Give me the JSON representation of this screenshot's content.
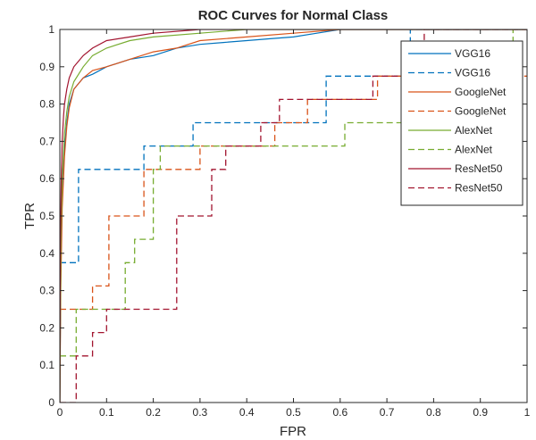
{
  "chart_data": {
    "type": "line",
    "title": "ROC Curves for Normal Class",
    "xlabel": "FPR",
    "ylabel": "TPR",
    "xlim": [
      0,
      1
    ],
    "ylim": [
      0,
      1
    ],
    "xticks": [
      "0",
      "0.1",
      "0.2",
      "0.3",
      "0.4",
      "0.5",
      "0.6",
      "0.7",
      "0.8",
      "0.9",
      "1"
    ],
    "yticks": [
      "0",
      "0.1",
      "0.2",
      "0.3",
      "0.4",
      "0.5",
      "0.6",
      "0.7",
      "0.8",
      "0.9",
      "1"
    ],
    "grid": false,
    "legend_position": "top-right",
    "series": [
      {
        "name": "VGG16",
        "style": "solid",
        "color": "#0072BD",
        "x": [
          0,
          0.002,
          0.005,
          0.01,
          0.015,
          0.02,
          0.03,
          0.05,
          0.07,
          0.1,
          0.15,
          0.2,
          0.25,
          0.3,
          0.35,
          0.4,
          0.45,
          0.5,
          0.55,
          0.6,
          0.7,
          0.8,
          0.9,
          1
        ],
        "y": [
          0,
          0.35,
          0.55,
          0.68,
          0.75,
          0.8,
          0.84,
          0.87,
          0.88,
          0.9,
          0.92,
          0.93,
          0.95,
          0.96,
          0.965,
          0.97,
          0.975,
          0.98,
          0.99,
          1,
          1,
          1,
          1,
          1
        ]
      },
      {
        "name": "VGG16",
        "style": "dashed",
        "color": "#0072BD",
        "x": [
          0,
          0.04,
          0.04,
          0.18,
          0.18,
          0.285,
          0.285,
          0.57,
          0.57,
          0.75,
          0.75,
          1
        ],
        "y": [
          0.375,
          0.375,
          0.625,
          0.625,
          0.6875,
          0.6875,
          0.75,
          0.75,
          0.875,
          0.875,
          1,
          1
        ]
      },
      {
        "name": "GoogleNet",
        "style": "solid",
        "color": "#D95319",
        "x": [
          0,
          0.002,
          0.005,
          0.01,
          0.015,
          0.02,
          0.03,
          0.05,
          0.07,
          0.1,
          0.15,
          0.2,
          0.25,
          0.3,
          0.4,
          0.5,
          0.6,
          0.7,
          1
        ],
        "y": [
          0,
          0.3,
          0.52,
          0.66,
          0.74,
          0.79,
          0.84,
          0.87,
          0.89,
          0.9,
          0.92,
          0.94,
          0.95,
          0.97,
          0.98,
          0.99,
          1,
          1,
          1
        ]
      },
      {
        "name": "GoogleNet",
        "style": "dashed",
        "color": "#D95319",
        "x": [
          0,
          0.07,
          0.07,
          0.105,
          0.105,
          0.18,
          0.18,
          0.3,
          0.3,
          0.46,
          0.46,
          0.53,
          0.53,
          0.68,
          0.68,
          1
        ],
        "y": [
          0.25,
          0.25,
          0.3125,
          0.3125,
          0.5,
          0.5,
          0.625,
          0.625,
          0.6875,
          0.6875,
          0.75,
          0.75,
          0.8125,
          0.8125,
          0.875,
          0.875
        ]
      },
      {
        "name": "AlexNet",
        "style": "solid",
        "color": "#77AC30",
        "x": [
          0,
          0.002,
          0.005,
          0.01,
          0.015,
          0.02,
          0.03,
          0.05,
          0.07,
          0.1,
          0.15,
          0.2,
          0.3,
          0.4,
          0.5,
          0.7,
          1
        ],
        "y": [
          0,
          0.4,
          0.6,
          0.72,
          0.78,
          0.82,
          0.86,
          0.9,
          0.93,
          0.95,
          0.97,
          0.98,
          0.99,
          1,
          1,
          1,
          1
        ]
      },
      {
        "name": "AlexNet",
        "style": "dashed",
        "color": "#77AC30",
        "x": [
          0,
          0.035,
          0.035,
          0.14,
          0.14,
          0.16,
          0.16,
          0.2,
          0.2,
          0.215,
          0.215,
          0.61,
          0.61,
          0.97,
          0.97,
          1
        ],
        "y": [
          0.125,
          0.125,
          0.25,
          0.25,
          0.375,
          0.375,
          0.4375,
          0.4375,
          0.625,
          0.625,
          0.6875,
          0.6875,
          0.75,
          0.75,
          1,
          1
        ]
      },
      {
        "name": "ResNet50",
        "style": "solid",
        "color": "#A2142F",
        "x": [
          0,
          0.001,
          0.003,
          0.005,
          0.008,
          0.01,
          0.015,
          0.02,
          0.03,
          0.05,
          0.07,
          0.1,
          0.15,
          0.2,
          0.3,
          0.4,
          0.5,
          0.7,
          1
        ],
        "y": [
          0,
          0.4,
          0.6,
          0.7,
          0.77,
          0.8,
          0.84,
          0.87,
          0.9,
          0.93,
          0.95,
          0.97,
          0.98,
          0.99,
          1,
          1,
          1,
          1,
          1
        ]
      },
      {
        "name": "ResNet50",
        "style": "dashed",
        "color": "#A2142F",
        "x": [
          0,
          0.035,
          0.035,
          0.07,
          0.07,
          0.1,
          0.1,
          0.25,
          0.25,
          0.325,
          0.325,
          0.355,
          0.355,
          0.43,
          0.43,
          0.47,
          0.47,
          0.67,
          0.67,
          0.78,
          0.78,
          1
        ],
        "y": [
          0,
          0,
          0.125,
          0.125,
          0.1875,
          0.1875,
          0.25,
          0.25,
          0.5,
          0.5,
          0.625,
          0.625,
          0.6875,
          0.6875,
          0.75,
          0.75,
          0.8125,
          0.8125,
          0.875,
          0.875,
          1,
          1
        ]
      }
    ]
  }
}
